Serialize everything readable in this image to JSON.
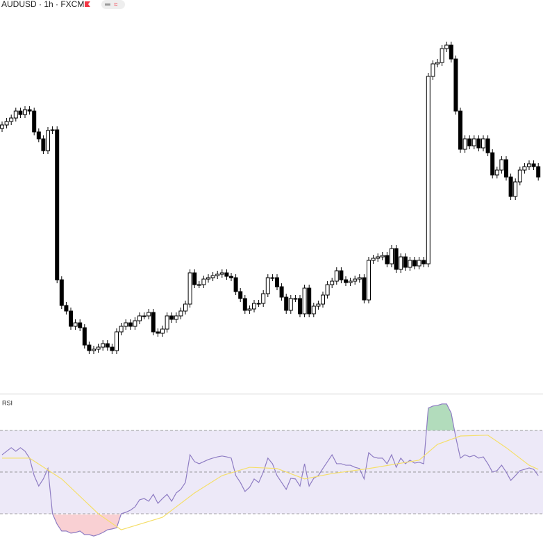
{
  "chart_data": [
    {
      "type": "candlestick",
      "title": "AUDUSD · 1h · FXCM",
      "ylim": [
        5,
        555
      ],
      "up_color": "#ffffff",
      "down_color": "#000000",
      "open": [
        385,
        390,
        395,
        400,
        410,
        405,
        412,
        410,
        380,
        370,
        353,
        382,
        383,
        167,
        130,
        122,
        100,
        105,
        98,
        73,
        65,
        67,
        70,
        75,
        70,
        65,
        92,
        100,
        105,
        100,
        108,
        115,
        115,
        120,
        92,
        90,
        96,
        115,
        110,
        115,
        122,
        132,
        177,
        160,
        160,
        168,
        170,
        173,
        175,
        177,
        172,
        170,
        150,
        140,
        123,
        125,
        133,
        133,
        147,
        170,
        170,
        157,
        142,
        123,
        140,
        140,
        118,
        155,
        118,
        129,
        132,
        145,
        160,
        165,
        180,
        167,
        163,
        165,
        168,
        170,
        138,
        195,
        198,
        200,
        202,
        190,
        212,
        182,
        200,
        185,
        195,
        187,
        195,
        190,
        460,
        478,
        480,
        500,
        505,
        485,
        410,
        355,
        370,
        360,
        370,
        357,
        370,
        350,
        318,
        325,
        340,
        315,
        287,
        308,
        325,
        330,
        334,
        330
      ],
      "high": [
        395,
        400,
        405,
        415,
        415,
        417,
        417,
        415,
        385,
        375,
        387,
        388,
        388,
        172,
        135,
        127,
        110,
        110,
        103,
        78,
        72,
        75,
        80,
        80,
        75,
        97,
        105,
        110,
        110,
        113,
        120,
        120,
        125,
        125,
        97,
        101,
        120,
        120,
        120,
        127,
        137,
        182,
        182,
        165,
        173,
        175,
        178,
        180,
        182,
        182,
        177,
        175,
        155,
        145,
        130,
        138,
        138,
        152,
        175,
        175,
        175,
        162,
        147,
        145,
        145,
        145,
        160,
        160,
        134,
        137,
        150,
        165,
        170,
        185,
        185,
        172,
        170,
        173,
        175,
        175,
        200,
        203,
        205,
        207,
        207,
        217,
        217,
        205,
        205,
        200,
        200,
        200,
        200,
        465,
        483,
        485,
        505,
        510,
        510,
        490,
        415,
        375,
        375,
        375,
        375,
        375,
        375,
        355,
        330,
        345,
        345,
        320,
        313,
        330,
        335,
        339,
        339,
        335
      ],
      "low": [
        380,
        385,
        390,
        395,
        400,
        400,
        405,
        375,
        365,
        348,
        348,
        377,
        162,
        125,
        117,
        95,
        95,
        93,
        68,
        60,
        60,
        62,
        65,
        65,
        60,
        60,
        87,
        95,
        95,
        95,
        103,
        110,
        110,
        87,
        85,
        85,
        91,
        105,
        105,
        110,
        117,
        127,
        155,
        155,
        155,
        163,
        165,
        168,
        170,
        167,
        165,
        145,
        135,
        118,
        118,
        120,
        128,
        128,
        142,
        165,
        152,
        137,
        118,
        118,
        135,
        113,
        113,
        113,
        113,
        124,
        127,
        140,
        155,
        160,
        162,
        158,
        158,
        160,
        163,
        133,
        133,
        190,
        193,
        195,
        185,
        185,
        177,
        177,
        180,
        180,
        182,
        182,
        185,
        185,
        455,
        473,
        475,
        495,
        480,
        405,
        350,
        350,
        355,
        355,
        352,
        352,
        345,
        313,
        313,
        320,
        310,
        282,
        282,
        303,
        320,
        325,
        325,
        310
      ],
      "close": [
        390,
        395,
        400,
        410,
        405,
        412,
        410,
        380,
        370,
        353,
        382,
        383,
        167,
        130,
        122,
        100,
        105,
        98,
        73,
        65,
        67,
        70,
        75,
        70,
        65,
        92,
        100,
        105,
        100,
        108,
        115,
        115,
        120,
        92,
        90,
        96,
        115,
        110,
        115,
        122,
        132,
        177,
        160,
        160,
        168,
        170,
        173,
        175,
        177,
        172,
        170,
        150,
        140,
        123,
        125,
        133,
        133,
        147,
        170,
        170,
        157,
        142,
        123,
        140,
        140,
        118,
        155,
        118,
        129,
        132,
        145,
        160,
        165,
        180,
        167,
        163,
        165,
        168,
        170,
        138,
        195,
        198,
        200,
        202,
        190,
        212,
        182,
        200,
        185,
        195,
        187,
        195,
        190,
        460,
        478,
        480,
        500,
        505,
        485,
        410,
        355,
        370,
        360,
        370,
        357,
        370,
        350,
        318,
        325,
        340,
        315,
        287,
        308,
        325,
        330,
        334,
        330,
        315
      ]
    },
    {
      "type": "rsi",
      "title": "RSI",
      "ylim": [
        15,
        87.3
      ],
      "levels": [
        70,
        50,
        30
      ],
      "band_color": "#ede9f8",
      "series": [
        {
          "color": "#8e7cc3",
          "values": [
            58.3,
            60,
            61.7,
            60,
            61.7,
            60,
            56.7,
            48.3,
            43.3,
            46.7,
            51.7,
            30,
            25,
            21.7,
            21.7,
            20.7,
            21,
            21.7,
            20,
            20,
            19.3,
            20,
            21,
            22.3,
            22.7,
            23.3,
            30,
            30.7,
            31.7,
            33.3,
            36.7,
            37.3,
            36,
            39.3,
            35,
            37.3,
            39.3,
            36,
            40,
            41.7,
            45,
            58.3,
            55,
            54,
            55,
            56,
            56.7,
            57.3,
            57.7,
            57.3,
            56.7,
            48.3,
            45,
            40.7,
            42.7,
            46.7,
            45,
            50,
            56.7,
            54,
            48.3,
            45,
            41.7,
            47,
            46.7,
            43.3,
            54,
            43.3,
            47,
            48.3,
            51.7,
            55,
            58.3,
            54,
            54,
            53.3,
            53.3,
            52.3,
            51.7,
            46.7,
            59.3,
            57.3,
            56.7,
            56.7,
            54,
            58.3,
            52.3,
            56.7,
            54,
            55.7,
            54.3,
            54.7,
            54,
            80.7,
            81.7,
            82,
            82.7,
            82.7,
            78.3,
            66.7,
            56.7,
            58.3,
            57.3,
            58,
            56.7,
            57.3,
            54,
            50,
            50.7,
            53.3,
            50,
            46,
            48.3,
            50.7,
            51.3,
            52,
            51.3,
            48.3
          ]
        },
        {
          "color": "#f5df6b",
          "x": [
            0,
            6,
            13,
            21,
            26,
            35,
            42,
            48,
            54,
            60,
            66,
            72,
            80,
            91,
            95,
            100,
            106,
            110,
            115,
            117
          ],
          "values": [
            56.7,
            56.7,
            46.7,
            30,
            22.3,
            28.3,
            40,
            48.3,
            52.3,
            51.7,
            46.7,
            49.3,
            51.7,
            55.7,
            63.3,
            67.3,
            67.7,
            61.7,
            53.3,
            51.3
          ]
        }
      ]
    }
  ]
}
